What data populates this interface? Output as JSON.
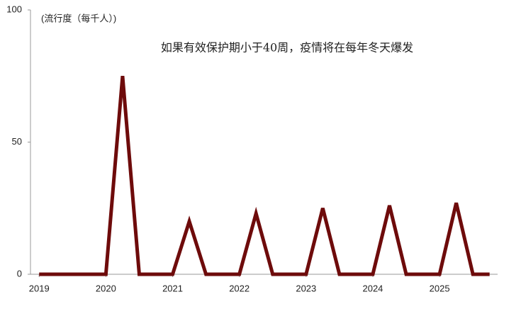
{
  "chart_data": {
    "type": "line",
    "y_label": "(流行度（每千人）)",
    "annotation": "如果有效保护期小于40周，疫情将在每年冬天爆发",
    "x": [
      2019,
      2020,
      2020.25,
      2020.5,
      2021,
      2021.25,
      2021.5,
      2022,
      2022.25,
      2022.5,
      2023,
      2023.25,
      2023.5,
      2024,
      2024.25,
      2024.5,
      2025,
      2025.25,
      2025.5,
      2025.75
    ],
    "series": [
      {
        "color": "#6e0b0b",
        "values": [
          0,
          0,
          75,
          0,
          0,
          20,
          0,
          0,
          23,
          0,
          0,
          25,
          0,
          0,
          26,
          0,
          0,
          27,
          0,
          0
        ]
      }
    ],
    "xlim": [
      2018.87,
      2025.87
    ],
    "xticks": [
      2019,
      2020,
      2021,
      2022,
      2023,
      2024,
      2025
    ],
    "ylim": [
      0,
      100
    ],
    "yticks": [
      0,
      50,
      100
    ],
    "grid": false
  }
}
